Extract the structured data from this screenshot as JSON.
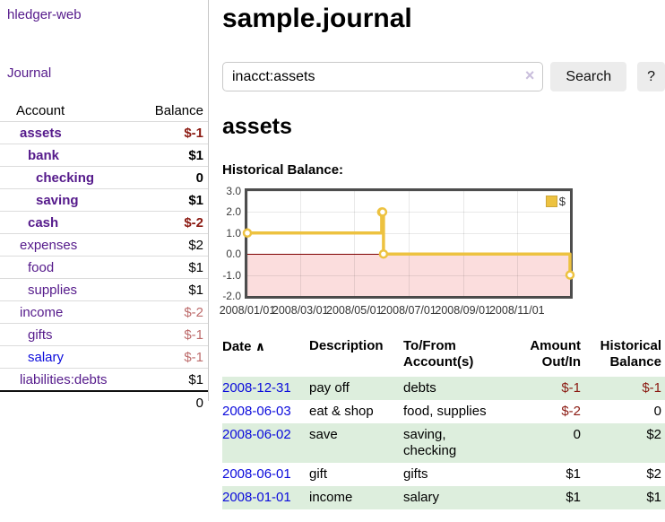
{
  "sidebar": {
    "brand": "hledger-web",
    "journal_link": "Journal",
    "accounts": {
      "headers": {
        "account": "Account",
        "balance": "Balance"
      },
      "rows": [
        {
          "name": "assets",
          "balance": "$-1"
        },
        {
          "name": "bank",
          "balance": "$1"
        },
        {
          "name": "checking",
          "balance": "0"
        },
        {
          "name": "saving",
          "balance": "$1"
        },
        {
          "name": "cash",
          "balance": "$-2"
        },
        {
          "name": "expenses",
          "balance": "$2"
        },
        {
          "name": "food",
          "balance": "$1"
        },
        {
          "name": "supplies",
          "balance": "$1"
        },
        {
          "name": "income",
          "balance": "$-2"
        },
        {
          "name": "gifts",
          "balance": "$-1"
        },
        {
          "name": "salary",
          "balance": "$-1"
        },
        {
          "name": "liabilities:debts",
          "balance": "$1"
        }
      ],
      "total": "0"
    }
  },
  "header": {
    "title": "sample.journal"
  },
  "search": {
    "query": "inacct:assets",
    "button_label": "Search",
    "help_label": "?"
  },
  "icons": {
    "clear": "×",
    "sort_ascending": "∧"
  },
  "account_page": {
    "heading": "assets",
    "chart_title": "Historical Balance:"
  },
  "chart_data": {
    "type": "line",
    "step": true,
    "series": [
      {
        "name": "$",
        "color": "#edc240",
        "points": [
          [
            "2008/01/01",
            1
          ],
          [
            "2008/06/01",
            2
          ],
          [
            "2008/06/02",
            2
          ],
          [
            "2008/06/03",
            0
          ],
          [
            "2008/12/31",
            -1
          ]
        ]
      }
    ],
    "xlim": [
      "2008/01/01",
      "2008/12/31"
    ],
    "ylim": [
      -2,
      3
    ],
    "x_ticks": [
      "2008/01/01",
      "2008/03/01",
      "2008/05/01",
      "2008/07/01",
      "2008/09/01",
      "2008/11/01"
    ],
    "y_ticks": [
      3,
      2,
      1,
      0,
      -1,
      -2
    ],
    "y_tick_labels": [
      "3.0",
      "2.0",
      "1.0",
      "0.0",
      "-1.0",
      "-2.0"
    ],
    "legend": {
      "label": "$",
      "position": "top-right"
    },
    "grid": true,
    "zero_line_color": "#7f0000",
    "negative_region_color": "#fbdddd"
  },
  "register": {
    "headers": {
      "date": "Date",
      "description": "Description",
      "accounts": "To/From Account(s)",
      "amount": "Amount Out/In",
      "balance": "Historical Balance"
    },
    "rows": [
      {
        "date": "2008-12-31",
        "description": "pay off",
        "accounts": "debts",
        "amount": "$-1",
        "balance": "$-1"
      },
      {
        "date": "2008-06-03",
        "description": "eat & shop",
        "accounts": "food, supplies",
        "amount": "$-2",
        "balance": "0"
      },
      {
        "date": "2008-06-02",
        "description": "save",
        "accounts": "saving, checking",
        "amount": "0",
        "balance": "$2"
      },
      {
        "date": "2008-06-01",
        "description": "gift",
        "accounts": "gifts",
        "amount": "$1",
        "balance": "$2"
      },
      {
        "date": "2008-01-01",
        "description": "income",
        "accounts": "salary",
        "amount": "$1",
        "balance": "$1"
      }
    ]
  },
  "colors": {
    "link_purple": "#551a8b",
    "link_blue": "#0b0bdc",
    "negative_strong": "#8b1a12",
    "negative_soft": "#bd6b6b",
    "row_green": "#ddeedd",
    "chart_line": "#edc240",
    "chart_negative_fill": "#fbdddd",
    "chart_zero_line": "#7f0000",
    "button_bg": "#ececec"
  }
}
